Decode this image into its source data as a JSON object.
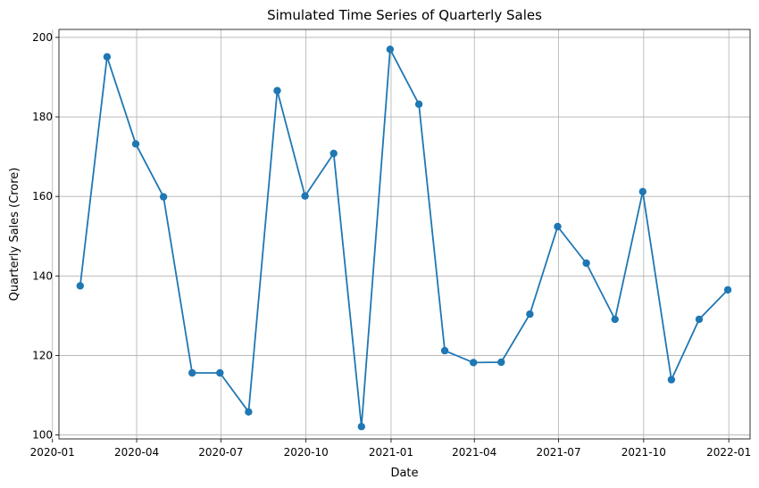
{
  "chart_data": {
    "type": "line",
    "title": "Simulated Time Series of Quarterly Sales",
    "xlabel": "Date",
    "ylabel": "Quarterly Sales (Crore)",
    "xlim": [
      "2020-01-08",
      "2022-01-24"
    ],
    "ylim": [
      99,
      202
    ],
    "grid": true,
    "marker": "circle",
    "x_ticks": [
      "2020-01",
      "2020-04",
      "2020-07",
      "2020-10",
      "2021-01",
      "2021-04",
      "2021-07",
      "2021-10",
      "2022-01"
    ],
    "y_ticks": [
      100,
      120,
      140,
      160,
      180,
      200
    ],
    "series": [
      {
        "color": "#1f77b4",
        "x": [
          "2020-01-31",
          "2020-02-29",
          "2020-03-31",
          "2020-04-30",
          "2020-05-31",
          "2020-06-30",
          "2020-07-31",
          "2020-08-31",
          "2020-09-30",
          "2020-10-31",
          "2020-11-30",
          "2020-12-31",
          "2021-01-31",
          "2021-02-28",
          "2021-03-31",
          "2021-04-30",
          "2021-05-31",
          "2021-06-30",
          "2021-07-31",
          "2021-08-31",
          "2021-09-30",
          "2021-10-31",
          "2021-11-30",
          "2021-12-31"
        ],
        "values": [
          137.5,
          195.1,
          173.2,
          159.9,
          115.6,
          115.6,
          105.8,
          186.6,
          160.1,
          170.8,
          102.1,
          197.0,
          183.2,
          121.2,
          118.2,
          118.3,
          130.4,
          152.4,
          143.2,
          129.1,
          161.2,
          113.9,
          129.1,
          136.5
        ]
      }
    ]
  }
}
